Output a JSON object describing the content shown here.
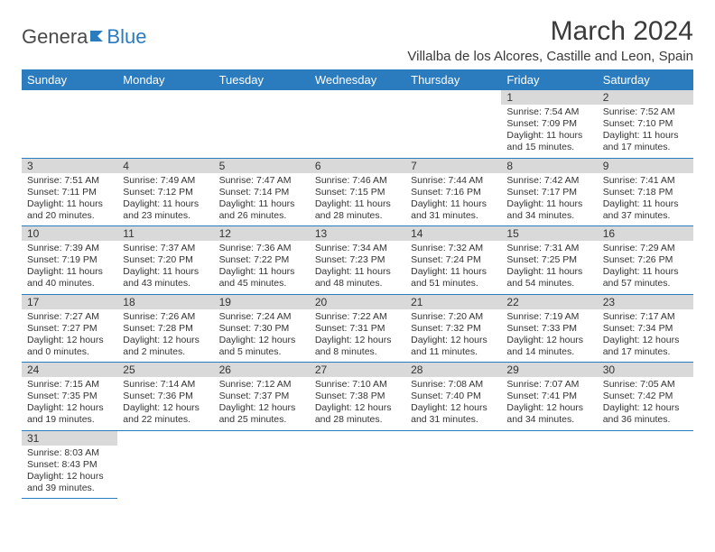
{
  "logo": {
    "text1": "Genera",
    "text2": "Blue"
  },
  "title": "March 2024",
  "location": "Villalba de los Alcores, Castille and Leon, Spain",
  "colors": {
    "header_bg": "#2b7bbf",
    "header_text": "#ffffff",
    "daynum_bg": "#d9d9d9",
    "border": "#2b7bbf",
    "text": "#333333"
  },
  "day_headers": [
    "Sunday",
    "Monday",
    "Tuesday",
    "Wednesday",
    "Thursday",
    "Friday",
    "Saturday"
  ],
  "weeks": [
    [
      null,
      null,
      null,
      null,
      null,
      {
        "n": "1",
        "sr": "7:54 AM",
        "ss": "7:09 PM",
        "dl": "11 hours and 15 minutes."
      },
      {
        "n": "2",
        "sr": "7:52 AM",
        "ss": "7:10 PM",
        "dl": "11 hours and 17 minutes."
      }
    ],
    [
      {
        "n": "3",
        "sr": "7:51 AM",
        "ss": "7:11 PM",
        "dl": "11 hours and 20 minutes."
      },
      {
        "n": "4",
        "sr": "7:49 AM",
        "ss": "7:12 PM",
        "dl": "11 hours and 23 minutes."
      },
      {
        "n": "5",
        "sr": "7:47 AM",
        "ss": "7:14 PM",
        "dl": "11 hours and 26 minutes."
      },
      {
        "n": "6",
        "sr": "7:46 AM",
        "ss": "7:15 PM",
        "dl": "11 hours and 28 minutes."
      },
      {
        "n": "7",
        "sr": "7:44 AM",
        "ss": "7:16 PM",
        "dl": "11 hours and 31 minutes."
      },
      {
        "n": "8",
        "sr": "7:42 AM",
        "ss": "7:17 PM",
        "dl": "11 hours and 34 minutes."
      },
      {
        "n": "9",
        "sr": "7:41 AM",
        "ss": "7:18 PM",
        "dl": "11 hours and 37 minutes."
      }
    ],
    [
      {
        "n": "10",
        "sr": "7:39 AM",
        "ss": "7:19 PM",
        "dl": "11 hours and 40 minutes."
      },
      {
        "n": "11",
        "sr": "7:37 AM",
        "ss": "7:20 PM",
        "dl": "11 hours and 43 minutes."
      },
      {
        "n": "12",
        "sr": "7:36 AM",
        "ss": "7:22 PM",
        "dl": "11 hours and 45 minutes."
      },
      {
        "n": "13",
        "sr": "7:34 AM",
        "ss": "7:23 PM",
        "dl": "11 hours and 48 minutes."
      },
      {
        "n": "14",
        "sr": "7:32 AM",
        "ss": "7:24 PM",
        "dl": "11 hours and 51 minutes."
      },
      {
        "n": "15",
        "sr": "7:31 AM",
        "ss": "7:25 PM",
        "dl": "11 hours and 54 minutes."
      },
      {
        "n": "16",
        "sr": "7:29 AM",
        "ss": "7:26 PM",
        "dl": "11 hours and 57 minutes."
      }
    ],
    [
      {
        "n": "17",
        "sr": "7:27 AM",
        "ss": "7:27 PM",
        "dl": "12 hours and 0 minutes."
      },
      {
        "n": "18",
        "sr": "7:26 AM",
        "ss": "7:28 PM",
        "dl": "12 hours and 2 minutes."
      },
      {
        "n": "19",
        "sr": "7:24 AM",
        "ss": "7:30 PM",
        "dl": "12 hours and 5 minutes."
      },
      {
        "n": "20",
        "sr": "7:22 AM",
        "ss": "7:31 PM",
        "dl": "12 hours and 8 minutes."
      },
      {
        "n": "21",
        "sr": "7:20 AM",
        "ss": "7:32 PM",
        "dl": "12 hours and 11 minutes."
      },
      {
        "n": "22",
        "sr": "7:19 AM",
        "ss": "7:33 PM",
        "dl": "12 hours and 14 minutes."
      },
      {
        "n": "23",
        "sr": "7:17 AM",
        "ss": "7:34 PM",
        "dl": "12 hours and 17 minutes."
      }
    ],
    [
      {
        "n": "24",
        "sr": "7:15 AM",
        "ss": "7:35 PM",
        "dl": "12 hours and 19 minutes."
      },
      {
        "n": "25",
        "sr": "7:14 AM",
        "ss": "7:36 PM",
        "dl": "12 hours and 22 minutes."
      },
      {
        "n": "26",
        "sr": "7:12 AM",
        "ss": "7:37 PM",
        "dl": "12 hours and 25 minutes."
      },
      {
        "n": "27",
        "sr": "7:10 AM",
        "ss": "7:38 PM",
        "dl": "12 hours and 28 minutes."
      },
      {
        "n": "28",
        "sr": "7:08 AM",
        "ss": "7:40 PM",
        "dl": "12 hours and 31 minutes."
      },
      {
        "n": "29",
        "sr": "7:07 AM",
        "ss": "7:41 PM",
        "dl": "12 hours and 34 minutes."
      },
      {
        "n": "30",
        "sr": "7:05 AM",
        "ss": "7:42 PM",
        "dl": "12 hours and 36 minutes."
      }
    ],
    [
      {
        "n": "31",
        "sr": "8:03 AM",
        "ss": "8:43 PM",
        "dl": "12 hours and 39 minutes."
      },
      null,
      null,
      null,
      null,
      null,
      null
    ]
  ],
  "labels": {
    "sunrise": "Sunrise:",
    "sunset": "Sunset:",
    "daylight": "Daylight:"
  }
}
